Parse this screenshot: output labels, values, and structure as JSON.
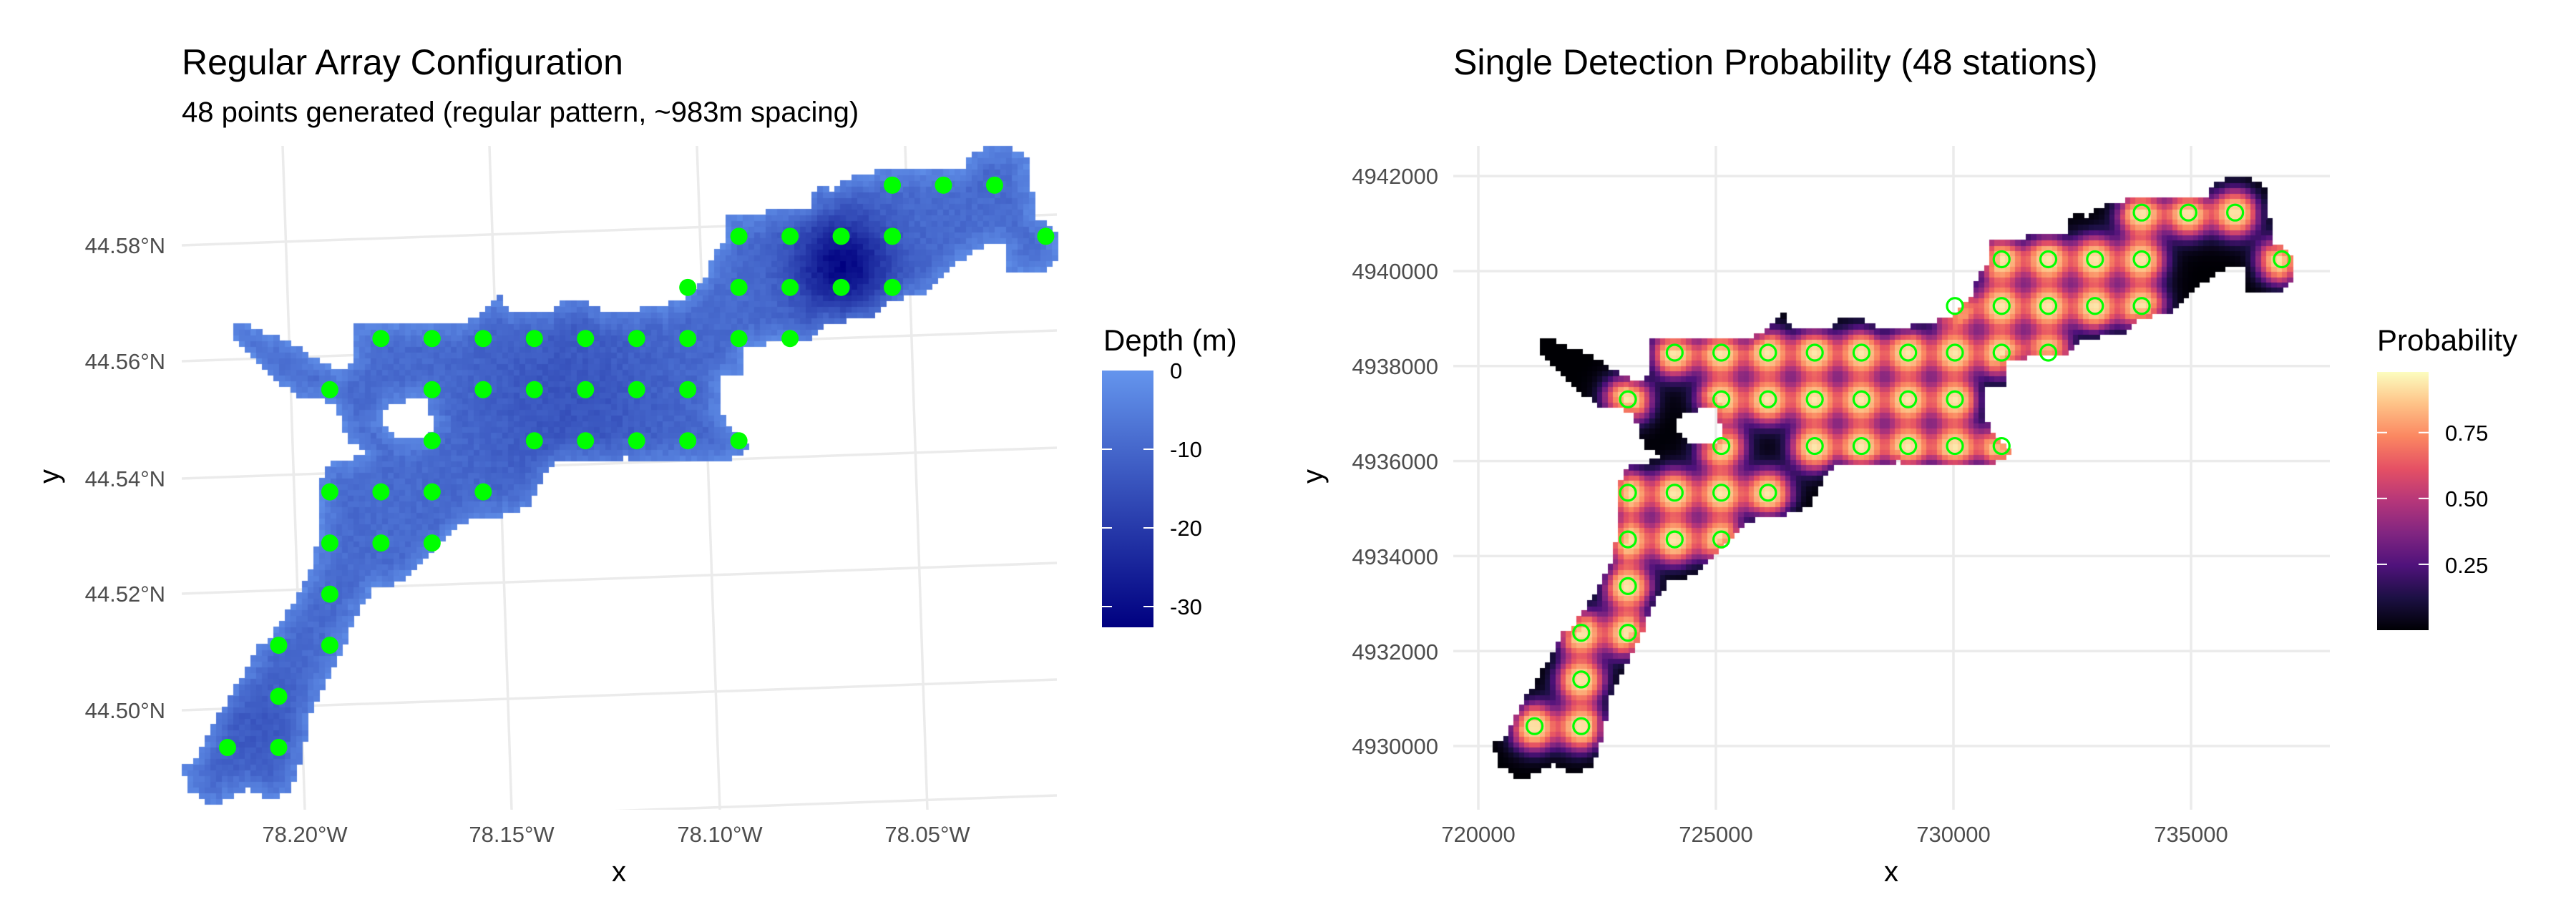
{
  "left_chart": {
    "title": "Regular Array Configuration",
    "subtitle": "48 points generated (regular pattern, ~983m spacing)",
    "xlabel": "x",
    "ylabel": "y",
    "x_ticks": [
      "78.20°W",
      "78.15°W",
      "78.10°W",
      "78.05°W"
    ],
    "y_ticks": [
      "44.58°N",
      "44.56°N",
      "44.54°N",
      "44.52°N",
      "44.50°N"
    ],
    "legend": {
      "title": "Depth (m)",
      "ticks": [
        "0",
        "-10",
        "-20",
        "-30"
      ],
      "tick_values": [
        0,
        -10,
        -20,
        -30
      ],
      "range": [
        -32.6,
        0
      ],
      "low_color": "#000080",
      "high_color": "#6495ED"
    },
    "point_color": "#00FF00"
  },
  "right_chart": {
    "title": "Single Detection Probability (48 stations)",
    "xlabel": "x",
    "ylabel": "y",
    "x_ticks": [
      "720000",
      "725000",
      "730000",
      "735000"
    ],
    "y_ticks": [
      "4942000",
      "4940000",
      "4938000",
      "4936000",
      "4934000",
      "4932000",
      "4930000"
    ],
    "legend": {
      "title": "Probability",
      "ticks": [
        "0.75",
        "0.50",
        "0.25"
      ],
      "tick_values": [
        0.75,
        0.5,
        0.25
      ],
      "range": [
        0.0,
        0.98
      ],
      "palette": [
        "#000004",
        "#1c1044",
        "#4f127b",
        "#812581",
        "#b5367a",
        "#e55064",
        "#fb8761",
        "#fec287",
        "#fcfdbf"
      ]
    },
    "point_color": "#00FF00"
  },
  "chart_data": [
    {
      "type": "heatmap",
      "title": "Regular Array Configuration",
      "subtitle": "48 points generated (regular pattern, ~983m spacing)",
      "xlabel": "x",
      "ylabel": "y",
      "fill": "Depth (m)",
      "fill_range": [
        -32.6,
        0
      ],
      "x_tick_labels": [
        "78.20°W",
        "78.15°W",
        "78.10°W",
        "78.05°W"
      ],
      "y_tick_labels": [
        "44.58°N",
        "44.56°N",
        "44.54°N",
        "44.52°N",
        "44.50°N"
      ],
      "grid": true,
      "legend_position": "right",
      "points_crs": "UTM (m)",
      "points": [
        [
          733962,
          4941232
        ],
        [
          734945,
          4941232
        ],
        [
          735928,
          4941232
        ],
        [
          731013,
          4940249
        ],
        [
          731996,
          4940249
        ],
        [
          732979,
          4940249
        ],
        [
          733962,
          4940249
        ],
        [
          736911,
          4940249
        ],
        [
          730030,
          4939266
        ],
        [
          731013,
          4939266
        ],
        [
          731996,
          4939266
        ],
        [
          732979,
          4939266
        ],
        [
          733962,
          4939266
        ],
        [
          724132,
          4938283
        ],
        [
          725115,
          4938283
        ],
        [
          726098,
          4938283
        ],
        [
          727081,
          4938283
        ],
        [
          728064,
          4938283
        ],
        [
          729047,
          4938283
        ],
        [
          730030,
          4938283
        ],
        [
          731013,
          4938283
        ],
        [
          731996,
          4938283
        ],
        [
          723149,
          4937300
        ],
        [
          725115,
          4937300
        ],
        [
          726098,
          4937300
        ],
        [
          727081,
          4937300
        ],
        [
          728064,
          4937300
        ],
        [
          729047,
          4937300
        ],
        [
          730030,
          4937300
        ],
        [
          725115,
          4936317
        ],
        [
          727081,
          4936317
        ],
        [
          728064,
          4936317
        ],
        [
          729047,
          4936317
        ],
        [
          730030,
          4936317
        ],
        [
          731013,
          4936317
        ],
        [
          723149,
          4935334
        ],
        [
          724132,
          4935334
        ],
        [
          725115,
          4935334
        ],
        [
          726098,
          4935334
        ],
        [
          723149,
          4934351
        ],
        [
          724132,
          4934351
        ],
        [
          725115,
          4934351
        ],
        [
          723149,
          4933368
        ],
        [
          722166,
          4932385
        ],
        [
          723149,
          4932385
        ],
        [
          722166,
          4931402
        ],
        [
          721183,
          4930419
        ],
        [
          722166,
          4930419
        ]
      ]
    },
    {
      "type": "heatmap",
      "title": "Single Detection Probability (48 stations)",
      "xlabel": "x",
      "ylabel": "y",
      "fill": "Probability",
      "fill_range": [
        0.0,
        0.98
      ],
      "xlim": [
        719470,
        737975
      ],
      "ylim": [
        4928666,
        4942585
      ],
      "x_ticks": [
        720000,
        725000,
        730000,
        735000
      ],
      "y_ticks": [
        4942000,
        4940000,
        4938000,
        4936000,
        4934000,
        4932000,
        4930000
      ],
      "grid": true,
      "legend_position": "right",
      "points": [
        [
          733962,
          4941232
        ],
        [
          734945,
          4941232
        ],
        [
          735928,
          4941232
        ],
        [
          731013,
          4940249
        ],
        [
          731996,
          4940249
        ],
        [
          732979,
          4940249
        ],
        [
          733962,
          4940249
        ],
        [
          736911,
          4940249
        ],
        [
          730030,
          4939266
        ],
        [
          731013,
          4939266
        ],
        [
          731996,
          4939266
        ],
        [
          732979,
          4939266
        ],
        [
          733962,
          4939266
        ],
        [
          724132,
          4938283
        ],
        [
          725115,
          4938283
        ],
        [
          726098,
          4938283
        ],
        [
          727081,
          4938283
        ],
        [
          728064,
          4938283
        ],
        [
          729047,
          4938283
        ],
        [
          730030,
          4938283
        ],
        [
          731013,
          4938283
        ],
        [
          731996,
          4938283
        ],
        [
          723149,
          4937300
        ],
        [
          725115,
          4937300
        ],
        [
          726098,
          4937300
        ],
        [
          727081,
          4937300
        ],
        [
          728064,
          4937300
        ],
        [
          729047,
          4937300
        ],
        [
          730030,
          4937300
        ],
        [
          725115,
          4936317
        ],
        [
          727081,
          4936317
        ],
        [
          728064,
          4936317
        ],
        [
          729047,
          4936317
        ],
        [
          730030,
          4936317
        ],
        [
          731013,
          4936317
        ],
        [
          723149,
          4935334
        ],
        [
          724132,
          4935334
        ],
        [
          725115,
          4935334
        ],
        [
          726098,
          4935334
        ],
        [
          723149,
          4934351
        ],
        [
          724132,
          4934351
        ],
        [
          725115,
          4934351
        ],
        [
          723149,
          4933368
        ],
        [
          722166,
          4932385
        ],
        [
          723149,
          4932385
        ],
        [
          722166,
          4931402
        ],
        [
          721183,
          4930419
        ],
        [
          722166,
          4930419
        ]
      ]
    }
  ]
}
